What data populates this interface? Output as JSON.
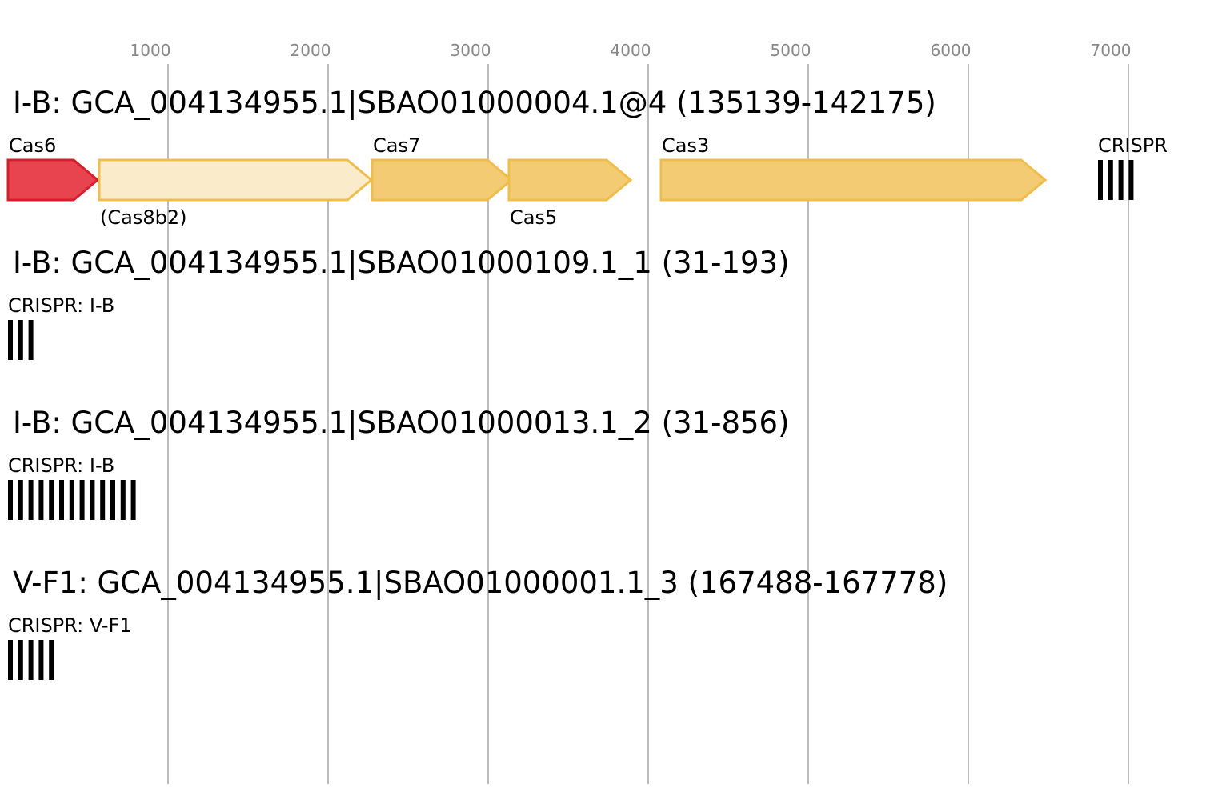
{
  "axis": {
    "ticks": [
      1000,
      2000,
      3000,
      4000,
      5000,
      6000,
      7000
    ],
    "range_bp": [
      0,
      7500
    ]
  },
  "tracks": [
    {
      "title": "I-B: GCA_004134955.1|SBAO01000004.1@4 (135139-142175)",
      "features": [
        {
          "kind": "gene",
          "label": "Cas6",
          "label_pos": "above",
          "start": 0,
          "end": 560,
          "fill": "#e8444f",
          "stroke": "#d81e2a",
          "opacity": 1
        },
        {
          "kind": "gene",
          "label": "(Cas8b2)",
          "label_pos": "below",
          "start": 570,
          "end": 2270,
          "fill": "#faebcb",
          "stroke": "#f0bd48",
          "opacity": 1
        },
        {
          "kind": "gene",
          "label": "Cas7",
          "label_pos": "above",
          "start": 2275,
          "end": 3145,
          "fill": "#f2cb73",
          "stroke": "#f0bd48",
          "opacity": 1
        },
        {
          "kind": "gene",
          "label": "Cas5",
          "label_pos": "below",
          "start": 3130,
          "end": 3890,
          "fill": "#f2cb73",
          "stroke": "#f0bd48",
          "opacity": 1
        },
        {
          "kind": "gene",
          "label": "Cas3",
          "label_pos": "above",
          "start": 4080,
          "end": 6480,
          "fill": "#f2cb73",
          "stroke": "#f0bd48",
          "opacity": 1
        },
        {
          "kind": "crispr",
          "label": "CRISPR",
          "start": 6810,
          "bars": 4
        }
      ]
    },
    {
      "title": "I-B: GCA_004134955.1|SBAO01000109.1_1 (31-193)",
      "features": [
        {
          "kind": "crispr",
          "label": "CRISPR: I-B",
          "start": 0,
          "bars": 3
        }
      ]
    },
    {
      "title": "I-B: GCA_004134955.1|SBAO01000013.1_2 (31-856)",
      "features": [
        {
          "kind": "crispr",
          "label": "CRISPR: I-B",
          "start": 0,
          "bars": 13
        }
      ]
    },
    {
      "title": "V-F1: GCA_004134955.1|SBAO01000001.1_3 (167488-167778)",
      "features": [
        {
          "kind": "crispr",
          "label": "CRISPR: V-F1",
          "start": 0,
          "bars": 5
        }
      ]
    }
  ]
}
